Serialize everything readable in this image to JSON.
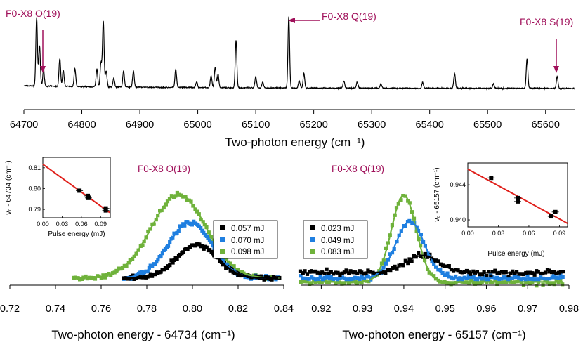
{
  "chart_data": [
    {
      "type": "line",
      "id": "top",
      "xlabel": "Two-photon energy (cm⁻¹)",
      "xlim": [
        64700,
        65650
      ],
      "x_ticks": [
        "64700",
        "64800",
        "64900",
        "65000",
        "65100",
        "65200",
        "65300",
        "65400",
        "65500",
        "65600"
      ],
      "grid": false,
      "annotations": [
        {
          "text": "F0-X8 O(19)",
          "x": 64734,
          "arrow": "down"
        },
        {
          "text": "F0-X8 Q(19)",
          "x": 65157,
          "arrow": "left"
        },
        {
          "text": "F0-X8 S(19)",
          "x": 65620,
          "arrow": "down"
        }
      ],
      "peaks": [
        {
          "x": 64722,
          "h": 0.93
        },
        {
          "x": 64727,
          "h": 0.55
        },
        {
          "x": 64734,
          "h": 0.22
        },
        {
          "x": 64762,
          "h": 0.38
        },
        {
          "x": 64768,
          "h": 0.22
        },
        {
          "x": 64788,
          "h": 0.25
        },
        {
          "x": 64826,
          "h": 0.24
        },
        {
          "x": 64833,
          "h": 0.33
        },
        {
          "x": 64837,
          "h": 0.89
        },
        {
          "x": 64842,
          "h": 0.22
        },
        {
          "x": 64855,
          "h": 0.12
        },
        {
          "x": 64872,
          "h": 0.22
        },
        {
          "x": 64889,
          "h": 0.22
        },
        {
          "x": 64962,
          "h": 0.25
        },
        {
          "x": 64998,
          "h": 0.08
        },
        {
          "x": 65023,
          "h": 0.16
        },
        {
          "x": 65030,
          "h": 0.28
        },
        {
          "x": 65035,
          "h": 0.18
        },
        {
          "x": 65066,
          "h": 0.64
        },
        {
          "x": 65100,
          "h": 0.15
        },
        {
          "x": 65112,
          "h": 0.08
        },
        {
          "x": 65157,
          "h": 0.97
        },
        {
          "x": 65183,
          "h": 0.2
        },
        {
          "x": 65175,
          "h": 0.1
        },
        {
          "x": 65252,
          "h": 0.1
        },
        {
          "x": 65275,
          "h": 0.08
        },
        {
          "x": 65316,
          "h": 0.06
        },
        {
          "x": 65388,
          "h": 0.08
        },
        {
          "x": 65443,
          "h": 0.2
        },
        {
          "x": 65510,
          "h": 0.06
        },
        {
          "x": 65568,
          "h": 0.4
        },
        {
          "x": 65620,
          "h": 0.16
        }
      ]
    },
    {
      "type": "scatter",
      "id": "left",
      "title": "F0-X8 O(19)",
      "xlabel": "Two-photon energy - 64734 (cm⁻¹)",
      "xlim": [
        0.72,
        0.84
      ],
      "x_ticks": [
        "0.72",
        "0.74",
        "0.76",
        "0.78",
        "0.80",
        "0.82",
        "0.84"
      ],
      "legend_position": "right",
      "series": [
        {
          "name": "0.057 mJ",
          "color": "#000000",
          "center": 0.802,
          "width": 0.009,
          "amp": 0.37,
          "x_start": 0.77
        },
        {
          "name": "0.070 mJ",
          "color": "#1f7fe0",
          "center": 0.799,
          "width": 0.0095,
          "amp": 0.62,
          "x_start": 0.77
        },
        {
          "name": "0.098 mJ",
          "color": "#6fb23b",
          "center": 0.794,
          "width": 0.012,
          "amp": 0.93,
          "x_start": 0.748
        }
      ],
      "inset": {
        "xlabel": "Pulse energy (mJ)",
        "ylabel": "ν₀ - 64734 (cm⁻¹)",
        "xlim": [
          0.0,
          0.105
        ],
        "ylim": [
          0.786,
          0.815
        ],
        "x_ticks": [
          "0.00",
          "0.03",
          "0.06",
          "0.09"
        ],
        "y_ticks": [
          "0.79",
          "0.80",
          "0.81"
        ],
        "points": [
          {
            "x": 0.057,
            "y": 0.799
          },
          {
            "x": 0.07,
            "y": 0.7965
          },
          {
            "x": 0.071,
            "y": 0.7955
          },
          {
            "x": 0.098,
            "y": 0.7905
          },
          {
            "x": 0.098,
            "y": 0.7895
          }
        ],
        "fit": [
          [
            0.0,
            0.8117
          ],
          [
            0.104,
            0.7885
          ]
        ]
      }
    },
    {
      "type": "scatter",
      "id": "right",
      "title": "F0-X8 Q(19)",
      "xlabel": "Two-photon energy - 65157 (cm⁻¹)",
      "xlim": [
        0.915,
        0.98
      ],
      "x_ticks": [
        "0.92",
        "0.93",
        "0.94",
        "0.95",
        "0.96",
        "0.97",
        "0.98"
      ],
      "legend_position": "left",
      "series": [
        {
          "name": "0.023 mJ",
          "color": "#000000",
          "center": 0.9445,
          "width": 0.004,
          "amp": 0.19,
          "base": 0.12
        },
        {
          "name": "0.049 mJ",
          "color": "#1f7fe0",
          "center": 0.9415,
          "width": 0.0035,
          "amp": 0.62,
          "base": 0.06
        },
        {
          "name": "0.083 mJ",
          "color": "#6fb23b",
          "center": 0.94,
          "width": 0.003,
          "amp": 0.95,
          "base": 0.02
        }
      ],
      "inset": {
        "xlabel": "Pulse energy (mJ)",
        "ylabel": "ν₀ - 65157 (cm⁻¹)",
        "xlim": [
          0.0,
          0.098
        ],
        "ylim": [
          0.9392,
          0.9465
        ],
        "x_ticks": [
          "0.00",
          "0.03",
          "0.06",
          "0.09"
        ],
        "y_ticks": [
          "0.940",
          "0.944"
        ],
        "points": [
          {
            "x": 0.023,
            "y": 0.9448
          },
          {
            "x": 0.049,
            "y": 0.9425
          },
          {
            "x": 0.049,
            "y": 0.9421
          },
          {
            "x": 0.082,
            "y": 0.9404
          },
          {
            "x": 0.086,
            "y": 0.9409
          }
        ],
        "fit": [
          [
            0.0,
            0.9458
          ],
          [
            0.098,
            0.9396
          ]
        ]
      }
    }
  ]
}
